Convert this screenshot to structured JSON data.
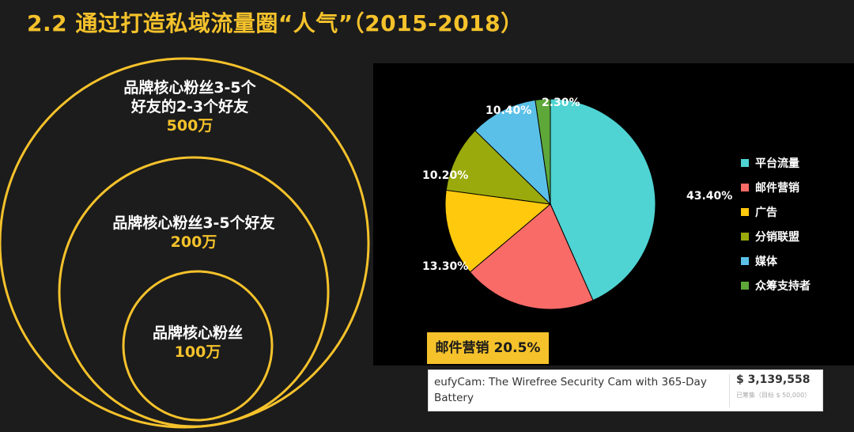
{
  "title": "2.2 通过打造私域流量圈“人气”（2015-2018）",
  "colors": {
    "accent": "#f5c22b",
    "background": "#1c1c1c",
    "chart_background": "#000000"
  },
  "circles": {
    "outer": {
      "label_line1": "品牌核心粉丝3-5个",
      "label_line2": "好友的2-3个好友",
      "count": "500万"
    },
    "middle": {
      "label": "品牌核心粉丝3-5个好友",
      "count": "200万"
    },
    "inner": {
      "label": "品牌核心粉丝",
      "count": "100万"
    }
  },
  "chart_data": {
    "type": "pie",
    "start_angle_deg": 0,
    "direction": "clockwise",
    "slices": [
      {
        "name": "平台流量",
        "value": 43.4,
        "label": "43.40%",
        "color": "#4fd3d3"
      },
      {
        "name": "邮件营销",
        "value": 20.5,
        "label": "",
        "color": "#f96b67"
      },
      {
        "name": "广告",
        "value": 13.3,
        "label": "13.30%",
        "color": "#ffc90e"
      },
      {
        "name": "分销联盟",
        "value": 10.2,
        "label": "10.20%",
        "color": "#9aaa0c"
      },
      {
        "name": "媒体",
        "value": 10.4,
        "label": "10.40%",
        "color": "#5bc0e8"
      },
      {
        "name": "众筹支持者",
        "value": 2.3,
        "label": "2.30%",
        "color": "#5ea83a"
      }
    ],
    "legend_position": "right"
  },
  "highlight": {
    "text": "邮件营销  20.5%"
  },
  "product_card": {
    "name": "eufyCam: The Wirefree Security Cam with 365-Day Battery",
    "amount": "$ 3,139,558",
    "subtext": "已筹集（目标 $ 50,000）"
  }
}
